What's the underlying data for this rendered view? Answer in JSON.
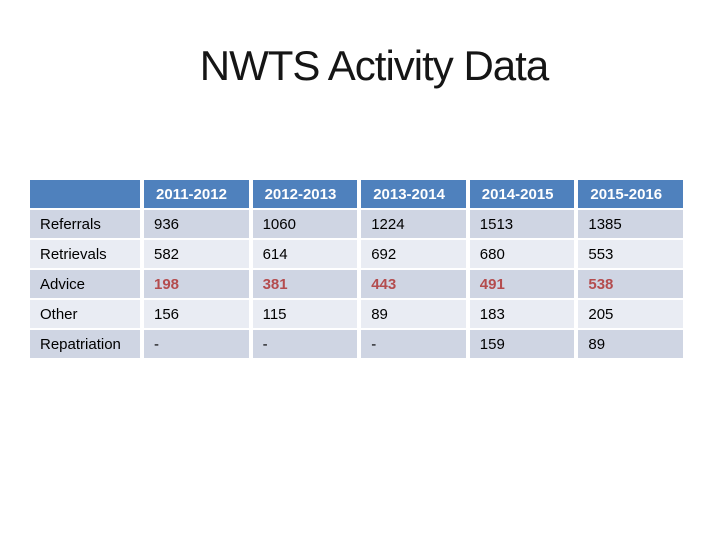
{
  "slide": {
    "title": "NWTS Activity Data"
  },
  "table": {
    "columns": [
      "",
      "2011-2012",
      "2012-2013",
      "2013-2014",
      "2014-2015",
      "2015-2016"
    ],
    "rows": [
      {
        "label": "Referrals",
        "values": [
          "936",
          "1060",
          "1224",
          "1513",
          "1385"
        ]
      },
      {
        "label": "Retrievals",
        "values": [
          "582",
          "614",
          "692",
          "680",
          "553"
        ]
      },
      {
        "label": "Advice",
        "values": [
          "198",
          "381",
          "443",
          "491",
          "538"
        ],
        "emphasis": "red-bold"
      },
      {
        "label": "Other",
        "values": [
          "156",
          "115",
          "89",
          "183",
          "205"
        ]
      },
      {
        "label": "Repatriation",
        "values": [
          "-",
          "-",
          "-",
          "159",
          "89"
        ]
      }
    ],
    "colors": {
      "header_bg": "#4f81bd",
      "header_text": "#ffffff",
      "band_dark": "#cfd5e3",
      "band_light": "#e9ecf3",
      "emphasis_text": "#b44c4e",
      "body_text": "#000000"
    }
  },
  "chart_data": {
    "type": "table",
    "title": "NWTS Activity Data",
    "categories": [
      "2011-2012",
      "2012-2013",
      "2013-2014",
      "2014-2015",
      "2015-2016"
    ],
    "series": [
      {
        "name": "Referrals",
        "values": [
          936,
          1060,
          1224,
          1513,
          1385
        ]
      },
      {
        "name": "Retrievals",
        "values": [
          582,
          614,
          692,
          680,
          553
        ]
      },
      {
        "name": "Advice",
        "values": [
          198,
          381,
          443,
          491,
          538
        ]
      },
      {
        "name": "Other",
        "values": [
          156,
          115,
          89,
          183,
          205
        ]
      },
      {
        "name": "Repatriation",
        "values": [
          null,
          null,
          null,
          159,
          89
        ]
      }
    ]
  }
}
